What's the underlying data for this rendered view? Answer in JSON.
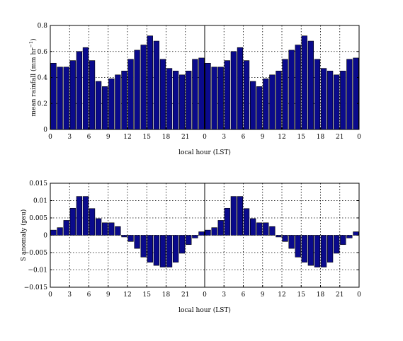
{
  "colors": {
    "bar": "#0a0a8c",
    "edge": "#000000",
    "background": "#ffffff"
  },
  "chart_data": [
    {
      "type": "bar",
      "xlabel": "local hour (LST)",
      "ylabel_main": "mean rainfall (mm hr",
      "ylabel_sup": "−1",
      "ylabel_close": ")",
      "grid": true,
      "ylim": [
        0,
        0.8
      ],
      "y_ticks": [
        0,
        0.2,
        0.4,
        0.6,
        0.8
      ],
      "y_tick_labels": [
        "0",
        "0.2",
        "0.4",
        "0.6",
        "0.8"
      ],
      "x_tick_labels": [
        "0",
        "3",
        "6",
        "9",
        "12",
        "15",
        "18",
        "21",
        "0",
        "3",
        "6",
        "9",
        "12",
        "15",
        "18",
        "21",
        "0"
      ],
      "hours": [
        0,
        1,
        2,
        3,
        4,
        5,
        6,
        7,
        8,
        9,
        10,
        11,
        12,
        13,
        14,
        15,
        16,
        17,
        18,
        19,
        20,
        21,
        22,
        23,
        0,
        1,
        2,
        3,
        4,
        5,
        6,
        7,
        8,
        9,
        10,
        11,
        12,
        13,
        14,
        15,
        16,
        17,
        18,
        19,
        20,
        21,
        22,
        23
      ],
      "values": [
        0.51,
        0.48,
        0.48,
        0.53,
        0.6,
        0.63,
        0.53,
        0.37,
        0.33,
        0.39,
        0.42,
        0.45,
        0.54,
        0.61,
        0.65,
        0.72,
        0.68,
        0.54,
        0.47,
        0.45,
        0.42,
        0.45,
        0.54,
        0.55,
        0.51,
        0.48,
        0.48,
        0.53,
        0.6,
        0.63,
        0.53,
        0.37,
        0.33,
        0.39,
        0.42,
        0.45,
        0.54,
        0.61,
        0.65,
        0.72,
        0.68,
        0.54,
        0.47,
        0.45,
        0.42,
        0.45,
        0.54,
        0.55
      ]
    },
    {
      "type": "bar",
      "xlabel": "local hour (LST)",
      "ylabel_main": "S anomaly (psu)",
      "grid": true,
      "ylim": [
        -0.015,
        0.015
      ],
      "y_ticks": [
        -0.015,
        -0.01,
        -0.005,
        0,
        0.005,
        0.01,
        0.015
      ],
      "y_tick_labels": [
        "−0.015",
        "−0.01",
        "−0.005",
        "0",
        "0.005",
        "0.01",
        "0.015"
      ],
      "x_tick_labels": [
        "0",
        "3",
        "6",
        "9",
        "12",
        "15",
        "18",
        "21",
        "0",
        "3",
        "6",
        "9",
        "12",
        "15",
        "18",
        "21",
        "0"
      ],
      "hours": [
        0,
        1,
        2,
        3,
        4,
        5,
        6,
        7,
        8,
        9,
        10,
        11,
        12,
        13,
        14,
        15,
        16,
        17,
        18,
        19,
        20,
        21,
        22,
        23,
        0,
        1,
        2,
        3,
        4,
        5,
        6,
        7,
        8,
        9,
        10,
        11,
        12,
        13,
        14,
        15,
        16,
        17,
        18,
        19,
        20,
        21,
        22,
        23
      ],
      "values": [
        0.0015,
        0.0022,
        0.0043,
        0.0078,
        0.0112,
        0.0112,
        0.0077,
        0.0048,
        0.0036,
        0.0036,
        0.0025,
        -0.0005,
        -0.0018,
        -0.0038,
        -0.0063,
        -0.0078,
        -0.0087,
        -0.0092,
        -0.0092,
        -0.0078,
        -0.0052,
        -0.0027,
        -0.0008,
        0.001,
        0.0015,
        0.0022,
        0.0043,
        0.0078,
        0.0112,
        0.0112,
        0.0077,
        0.0048,
        0.0036,
        0.0036,
        0.0025,
        -0.0005,
        -0.0018,
        -0.0038,
        -0.0063,
        -0.0078,
        -0.0087,
        -0.0092,
        -0.0092,
        -0.0078,
        -0.0052,
        -0.0027,
        -0.0008,
        0.001
      ]
    }
  ]
}
